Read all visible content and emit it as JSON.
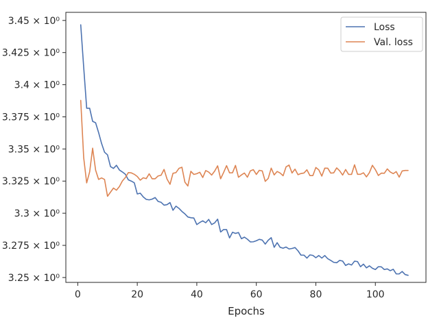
{
  "chart_data": {
    "type": "line",
    "xlabel": "Epochs",
    "ylabel": "",
    "xlim": [
      -4,
      117
    ],
    "ylim": [
      3.2462,
      3.4563
    ],
    "x_ticks": [
      0,
      20,
      40,
      60,
      80,
      100
    ],
    "x_tick_labels": [
      "0",
      "20",
      "40",
      "60",
      "80",
      "100"
    ],
    "y_ticks": [
      3.25,
      3.275,
      3.3,
      3.325,
      3.35,
      3.375,
      3.4,
      3.425,
      3.45
    ],
    "y_tick_labels": [
      "3.25 × 10⁰",
      "3.275 × 10⁰",
      "3.3 × 10⁰",
      "3.325 × 10⁰",
      "3.35 × 10⁰",
      "3.375 × 10⁰",
      "3.4 × 10⁰",
      "3.425 × 10⁰",
      "3.45 × 10⁰"
    ],
    "grid": false,
    "legend_position": "top-right",
    "x": [
      1,
      2,
      3,
      4,
      5,
      6,
      7,
      8,
      9,
      10,
      11,
      12,
      13,
      14,
      15,
      16,
      17,
      18,
      19,
      20,
      21,
      22,
      23,
      24,
      25,
      26,
      27,
      28,
      29,
      30,
      31,
      32,
      33,
      34,
      35,
      36,
      37,
      38,
      39,
      40,
      41,
      42,
      43,
      44,
      45,
      46,
      47,
      48,
      49,
      50,
      51,
      52,
      53,
      54,
      55,
      56,
      57,
      58,
      59,
      60,
      61,
      62,
      63,
      64,
      65,
      66,
      67,
      68,
      69,
      70,
      71,
      72,
      73,
      74,
      75,
      76,
      77,
      78,
      79,
      80,
      81,
      82,
      83,
      84,
      85,
      86,
      87,
      88,
      89,
      90,
      91,
      92,
      93,
      94,
      95,
      96,
      97,
      98,
      99,
      100,
      101,
      102,
      103,
      104,
      105,
      106,
      107,
      108,
      109,
      110,
      111
    ],
    "series": [
      {
        "name": "Loss",
        "color": "#4c72b0",
        "values": [
          3.4466,
          3.4135,
          3.3817,
          3.3817,
          3.3715,
          3.3704,
          3.3628,
          3.3543,
          3.3475,
          3.3454,
          3.3363,
          3.3349,
          3.3373,
          3.3336,
          3.3321,
          3.3303,
          3.326,
          3.325,
          3.3237,
          3.315,
          3.3156,
          3.3127,
          3.3108,
          3.3104,
          3.311,
          3.3122,
          3.3092,
          3.3085,
          3.3063,
          3.3067,
          3.3083,
          3.3023,
          3.3055,
          3.3038,
          3.3014,
          3.2995,
          3.2971,
          3.2965,
          3.2963,
          3.2912,
          3.2928,
          3.2941,
          3.2926,
          3.2952,
          3.2912,
          3.2925,
          3.2954,
          3.2854,
          3.2873,
          3.2873,
          3.2808,
          3.2852,
          3.2843,
          3.285,
          3.2802,
          3.2814,
          3.2798,
          3.2777,
          3.2778,
          3.2786,
          3.2797,
          3.2791,
          3.276,
          3.279,
          3.281,
          3.2735,
          3.2771,
          3.2735,
          3.2728,
          3.2737,
          3.2722,
          3.2726,
          3.2733,
          3.2708,
          3.2674,
          3.2674,
          3.2651,
          3.2676,
          3.2672,
          3.2654,
          3.2671,
          3.2651,
          3.2671,
          3.2646,
          3.2633,
          3.2618,
          3.2615,
          3.2633,
          3.2628,
          3.2594,
          3.2606,
          3.2597,
          3.2627,
          3.2624,
          3.2584,
          3.2604,
          3.2575,
          3.2591,
          3.2572,
          3.2562,
          3.2584,
          3.2583,
          3.2562,
          3.2567,
          3.2553,
          3.2564,
          3.2528,
          3.2528,
          3.2547,
          3.2523,
          3.2517
        ]
      },
      {
        "name": "Val. loss",
        "color": "#dd8452",
        "values": [
          3.3878,
          3.3431,
          3.3236,
          3.3322,
          3.3506,
          3.3335,
          3.3263,
          3.3275,
          3.3263,
          3.3132,
          3.3164,
          3.3196,
          3.3179,
          3.3208,
          3.3251,
          3.3278,
          3.3316,
          3.3314,
          3.3303,
          3.3286,
          3.3257,
          3.3276,
          3.3269,
          3.3307,
          3.3268,
          3.3268,
          3.329,
          3.3296,
          3.3341,
          3.3266,
          3.3225,
          3.3311,
          3.3316,
          3.3349,
          3.3358,
          3.3242,
          3.3212,
          3.3326,
          3.3302,
          3.3308,
          3.3319,
          3.3278,
          3.3332,
          3.332,
          3.3297,
          3.3328,
          3.3369,
          3.3268,
          3.3317,
          3.337,
          3.3314,
          3.3315,
          3.3372,
          3.328,
          3.3298,
          3.3313,
          3.328,
          3.333,
          3.3339,
          3.3302,
          3.3334,
          3.3329,
          3.3248,
          3.3271,
          3.3351,
          3.3298,
          3.3325,
          3.3313,
          3.3292,
          3.3361,
          3.3375,
          3.3313,
          3.3343,
          3.33,
          3.3309,
          3.3313,
          3.3338,
          3.3293,
          3.3293,
          3.3356,
          3.3337,
          3.3289,
          3.3351,
          3.335,
          3.3312,
          3.3314,
          3.3353,
          3.333,
          3.3297,
          3.334,
          3.3302,
          3.3302,
          3.3377,
          3.3303,
          3.3303,
          3.3315,
          3.3283,
          3.3316,
          3.3373,
          3.3339,
          3.3294,
          3.3312,
          3.3311,
          3.3345,
          3.3321,
          3.3308,
          3.3324,
          3.3281,
          3.3329,
          3.3333,
          3.3333
        ]
      }
    ]
  }
}
